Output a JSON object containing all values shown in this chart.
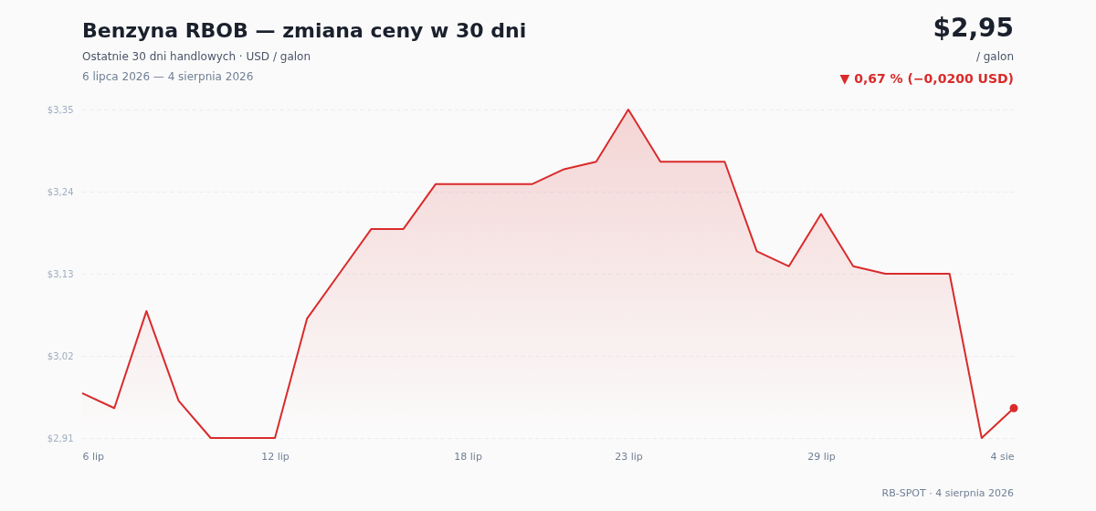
{
  "chart_data": {
    "type": "area",
    "title": "Benzyna RBOB — zmiana ceny w 30 dni",
    "subtitle": "Ostatnie 30 dni handlowych · USD / galon",
    "x": [
      "2026-07-06",
      "2026-07-07",
      "2026-07-08",
      "2026-07-09",
      "2026-07-10",
      "2026-07-11",
      "2026-07-12",
      "2026-07-13",
      "2026-07-14",
      "2026-07-15",
      "2026-07-16",
      "2026-07-17",
      "2026-07-18",
      "2026-07-19",
      "2026-07-20",
      "2026-07-21",
      "2026-07-22",
      "2026-07-23",
      "2026-07-24",
      "2026-07-25",
      "2026-07-26",
      "2026-07-27",
      "2026-07-28",
      "2026-07-29",
      "2026-07-30",
      "2026-07-31",
      "2026-08-01",
      "2026-08-02",
      "2026-08-03",
      "2026-08-04"
    ],
    "series": [
      {
        "color": "#d92b2b",
        "values": [
          2.97,
          2.95,
          3.08,
          2.96,
          2.91,
          2.91,
          2.91,
          3.07,
          3.13,
          3.19,
          3.19,
          3.25,
          3.25,
          3.25,
          3.25,
          3.27,
          3.28,
          3.35,
          3.28,
          3.28,
          3.28,
          3.16,
          3.14,
          3.21,
          3.14,
          3.13,
          3.13,
          3.13,
          2.91,
          2.95
        ]
      },
      {
        "type": "scatter",
        "color": "#d92b2b",
        "x": [
          "2026-08-04"
        ],
        "values": [
          2.95
        ],
        "marker": "circle"
      }
    ],
    "xlim": [
      "2026-07-06",
      "2026-08-04"
    ],
    "xticks": [
      {
        "value": "2026-07-06",
        "label": "6 lip"
      },
      {
        "value": "2026-07-12",
        "label": "12 lip"
      },
      {
        "value": "2026-07-18",
        "label": "18 lip"
      },
      {
        "value": "2026-07-23",
        "label": "23 lip"
      },
      {
        "value": "2026-07-29",
        "label": "29 lip"
      },
      {
        "value": "2026-08-04",
        "label": "4 sie"
      }
    ],
    "ylim": [
      2.91,
      3.35
    ],
    "yticks": [
      {
        "value": 2.91,
        "label": "$2,91"
      },
      {
        "value": 3.02,
        "label": "$3,02"
      },
      {
        "value": 3.13,
        "label": "$3,13"
      },
      {
        "value": 3.24,
        "label": "$3,24"
      },
      {
        "value": 3.35,
        "label": "$3,35"
      }
    ],
    "grid": "y",
    "annotations": [
      "6 lipca 2026 — 4 sierpnia 2026",
      "$2,95",
      "/ galon",
      "▼ 0,67 % (−0,0200 USD)",
      "RB-SPOT · 4 sierpnia 2026"
    ]
  }
}
